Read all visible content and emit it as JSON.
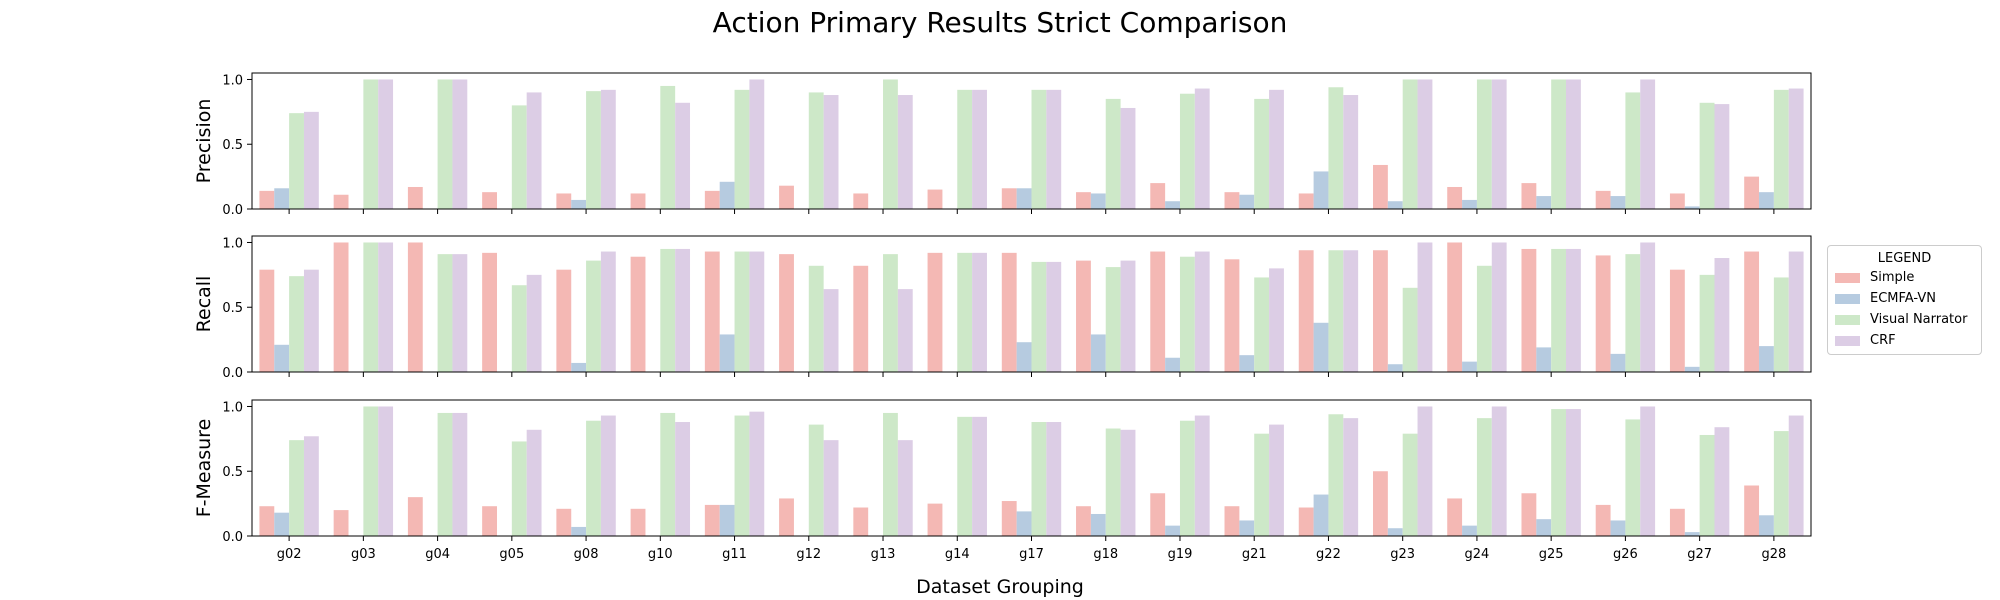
{
  "figure": {
    "title": "Action Primary Results Strict Comparison",
    "xlabel": "Dataset Grouping"
  },
  "legend": {
    "title": "LEGEND",
    "items": [
      {
        "label": "Simple",
        "color": "#f4b8b4"
      },
      {
        "label": "ECMFA-VN",
        "color": "#b6cbe0"
      },
      {
        "label": "Visual Narrator",
        "color": "#cde8c8"
      },
      {
        "label": "CRF",
        "color": "#dccde5"
      }
    ]
  },
  "chart_data": [
    {
      "type": "bar",
      "ylabel": "Precision",
      "ylim": [
        0,
        1.05
      ],
      "yticks": [
        "0.0",
        "0.5",
        "1.0"
      ],
      "categories": [
        "g02",
        "g03",
        "g04",
        "g05",
        "g08",
        "g10",
        "g11",
        "g12",
        "g13",
        "g14",
        "g17",
        "g18",
        "g19",
        "g21",
        "g22",
        "g23",
        "g24",
        "g25",
        "g26",
        "g27",
        "g28"
      ],
      "series": [
        {
          "name": "Simple",
          "values": [
            0.14,
            0.11,
            0.17,
            0.13,
            0.12,
            0.12,
            0.14,
            0.18,
            0.12,
            0.15,
            0.16,
            0.13,
            0.2,
            0.13,
            0.12,
            0.34,
            0.17,
            0.2,
            0.14,
            0.12,
            0.25
          ]
        },
        {
          "name": "ECMFA-VN",
          "values": [
            0.16,
            0,
            0,
            0,
            0.07,
            0,
            0.21,
            0,
            0,
            0,
            0.16,
            0.12,
            0.06,
            0.11,
            0.29,
            0.06,
            0.07,
            0.1,
            0.1,
            0.02,
            0.13
          ]
        },
        {
          "name": "Visual Narrator",
          "values": [
            0.74,
            1.0,
            1.0,
            0.8,
            0.91,
            0.95,
            0.92,
            0.9,
            1.0,
            0.92,
            0.92,
            0.85,
            0.89,
            0.85,
            0.94,
            1.0,
            1.0,
            1.0,
            0.9,
            0.82,
            0.92
          ]
        },
        {
          "name": "CRF",
          "values": [
            0.75,
            1.0,
            1.0,
            0.9,
            0.92,
            0.82,
            1.0,
            0.88,
            0.88,
            0.92,
            0.92,
            0.78,
            0.93,
            0.92,
            0.88,
            1.0,
            1.0,
            1.0,
            1.0,
            0.81,
            0.93
          ]
        }
      ]
    },
    {
      "type": "bar",
      "ylabel": "Recall",
      "ylim": [
        0,
        1.05
      ],
      "yticks": [
        "0.0",
        "0.5",
        "1.0"
      ],
      "categories": [
        "g02",
        "g03",
        "g04",
        "g05",
        "g08",
        "g10",
        "g11",
        "g12",
        "g13",
        "g14",
        "g17",
        "g18",
        "g19",
        "g21",
        "g22",
        "g23",
        "g24",
        "g25",
        "g26",
        "g27",
        "g28"
      ],
      "series": [
        {
          "name": "Simple",
          "values": [
            0.79,
            1.0,
            1.0,
            0.92,
            0.79,
            0.89,
            0.93,
            0.91,
            0.82,
            0.92,
            0.92,
            0.86,
            0.93,
            0.87,
            0.94,
            0.94,
            1.0,
            0.95,
            0.9,
            0.79,
            0.93
          ]
        },
        {
          "name": "ECMFA-VN",
          "values": [
            0.21,
            0,
            0,
            0,
            0.07,
            0,
            0.29,
            0,
            0,
            0,
            0.23,
            0.29,
            0.11,
            0.13,
            0.38,
            0.06,
            0.08,
            0.19,
            0.14,
            0.04,
            0.2
          ]
        },
        {
          "name": "Visual Narrator",
          "values": [
            0.74,
            1.0,
            0.91,
            0.67,
            0.86,
            0.95,
            0.93,
            0.82,
            0.91,
            0.92,
            0.85,
            0.81,
            0.89,
            0.73,
            0.94,
            0.65,
            0.82,
            0.95,
            0.91,
            0.75,
            0.73
          ]
        },
        {
          "name": "CRF",
          "values": [
            0.79,
            1.0,
            0.91,
            0.75,
            0.93,
            0.95,
            0.93,
            0.64,
            0.64,
            0.92,
            0.85,
            0.86,
            0.93,
            0.8,
            0.94,
            1.0,
            1.0,
            0.95,
            1.0,
            0.88,
            0.93
          ]
        }
      ]
    },
    {
      "type": "bar",
      "ylabel": "F-Measure",
      "ylim": [
        0,
        1.05
      ],
      "yticks": [
        "0.0",
        "0.5",
        "1.0"
      ],
      "categories": [
        "g02",
        "g03",
        "g04",
        "g05",
        "g08",
        "g10",
        "g11",
        "g12",
        "g13",
        "g14",
        "g17",
        "g18",
        "g19",
        "g21",
        "g22",
        "g23",
        "g24",
        "g25",
        "g26",
        "g27",
        "g28"
      ],
      "series": [
        {
          "name": "Simple",
          "values": [
            0.23,
            0.2,
            0.3,
            0.23,
            0.21,
            0.21,
            0.24,
            0.29,
            0.22,
            0.25,
            0.27,
            0.23,
            0.33,
            0.23,
            0.22,
            0.5,
            0.29,
            0.33,
            0.24,
            0.21,
            0.39
          ]
        },
        {
          "name": "ECMFA-VN",
          "values": [
            0.18,
            0,
            0,
            0,
            0.07,
            0,
            0.24,
            0,
            0,
            0,
            0.19,
            0.17,
            0.08,
            0.12,
            0.32,
            0.06,
            0.08,
            0.13,
            0.12,
            0.03,
            0.16
          ]
        },
        {
          "name": "Visual Narrator",
          "values": [
            0.74,
            1.0,
            0.95,
            0.73,
            0.89,
            0.95,
            0.93,
            0.86,
            0.95,
            0.92,
            0.88,
            0.83,
            0.89,
            0.79,
            0.94,
            0.79,
            0.91,
            0.98,
            0.9,
            0.78,
            0.81
          ]
        },
        {
          "name": "CRF",
          "values": [
            0.77,
            1.0,
            0.95,
            0.82,
            0.93,
            0.88,
            0.96,
            0.74,
            0.74,
            0.92,
            0.88,
            0.82,
            0.93,
            0.86,
            0.91,
            1.0,
            1.0,
            0.98,
            1.0,
            0.84,
            0.93
          ]
        }
      ]
    }
  ]
}
